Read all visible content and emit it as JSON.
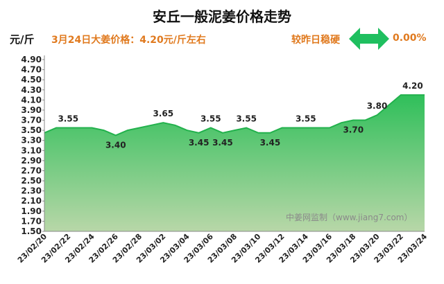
{
  "header": {
    "title": "安丘一般泥姜价格走势",
    "unit": "元/斤",
    "summary": "3月24日大姜价格：4.20元/斤左右",
    "compare_label": "较昨日稳硬",
    "change": "0.00%"
  },
  "colors": {
    "accent": "#e07a1f",
    "area_top": "#2fbf5a",
    "area_bottom": "#b8d7a8",
    "line": "#22b14c",
    "arrow": "#1fbf5f"
  },
  "icon": "double-arrow-icon",
  "watermark": "中姜网监制（www.jiang7.com）",
  "chart_data": {
    "type": "area",
    "title": "安丘一般泥姜价格走势",
    "ylabel": "元/斤",
    "ylim": [
      1.5,
      4.9
    ],
    "yticks": [
      "1.50",
      "1.70",
      "1.90",
      "2.10",
      "2.30",
      "2.50",
      "2.70",
      "2.90",
      "3.10",
      "3.30",
      "3.50",
      "3.70",
      "3.90",
      "4.10",
      "4.30",
      "4.50",
      "4.70",
      "4.90"
    ],
    "x_tick_labels": [
      "23/02/20",
      "23/02/22",
      "23/02/24",
      "23/02/26",
      "23/02/28",
      "23/03/02",
      "23/03/04",
      "23/03/06",
      "23/03/08",
      "23/03/10",
      "23/03/12",
      "23/03/14",
      "23/03/16",
      "23/03/18",
      "23/03/20",
      "23/03/22",
      "23/03/24"
    ],
    "x": [
      "23/02/20",
      "23/02/21",
      "23/02/22",
      "23/02/23",
      "23/02/24",
      "23/02/25",
      "23/02/26",
      "23/02/27",
      "23/02/28",
      "23/03/01",
      "23/03/02",
      "23/03/03",
      "23/03/04",
      "23/03/05",
      "23/03/06",
      "23/03/07",
      "23/03/08",
      "23/03/09",
      "23/03/10",
      "23/03/11",
      "23/03/12",
      "23/03/13",
      "23/03/14",
      "23/03/15",
      "23/03/16",
      "23/03/17",
      "23/03/18",
      "23/03/19",
      "23/03/20",
      "23/03/21",
      "23/03/22",
      "23/03/23",
      "23/03/24"
    ],
    "values": [
      3.45,
      3.55,
      3.55,
      3.55,
      3.55,
      3.5,
      3.4,
      3.5,
      3.55,
      3.6,
      3.65,
      3.6,
      3.5,
      3.45,
      3.55,
      3.45,
      3.5,
      3.55,
      3.45,
      3.45,
      3.55,
      3.55,
      3.55,
      3.55,
      3.55,
      3.65,
      3.7,
      3.7,
      3.8,
      4.0,
      4.2,
      4.2,
      4.2
    ],
    "data_labels": [
      {
        "index": 2,
        "text": "3.55",
        "pos": "above"
      },
      {
        "index": 6,
        "text": "3.40",
        "pos": "below"
      },
      {
        "index": 10,
        "text": "3.65",
        "pos": "above"
      },
      {
        "index": 13,
        "text": "3.45",
        "pos": "below"
      },
      {
        "index": 14,
        "text": "3.55",
        "pos": "above"
      },
      {
        "index": 15,
        "text": "3.45",
        "pos": "below"
      },
      {
        "index": 17,
        "text": "3.55",
        "pos": "above"
      },
      {
        "index": 19,
        "text": "3.45",
        "pos": "below"
      },
      {
        "index": 22,
        "text": "3.55",
        "pos": "above"
      },
      {
        "index": 26,
        "text": "3.70",
        "pos": "below"
      },
      {
        "index": 28,
        "text": "3.80",
        "pos": "above"
      },
      {
        "index": 31,
        "text": "4.20",
        "pos": "above"
      }
    ],
    "grid": false,
    "legend": "none"
  }
}
